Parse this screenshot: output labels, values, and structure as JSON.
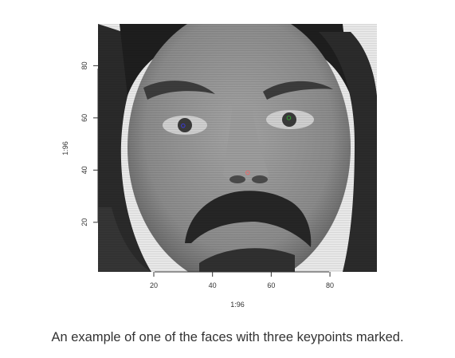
{
  "chart_data": {
    "type": "scatter",
    "title": "",
    "xlabel": "1:96",
    "ylabel": "1:96",
    "xlim": [
      1,
      96
    ],
    "ylim": [
      1,
      96
    ],
    "x_ticks": [
      20,
      40,
      60,
      80
    ],
    "y_ticks": [
      20,
      40,
      60,
      80
    ],
    "grid": false,
    "background": "grayscale face image",
    "series": [
      {
        "values": [
          {
            "x": 66,
            "y": 60
          }
        ],
        "color": "#2ca02c"
      },
      {
        "values": [
          {
            "x": 30,
            "y": 57
          }
        ],
        "color": "#3b3bd6"
      },
      {
        "values": [
          {
            "x": 52,
            "y": 39
          }
        ],
        "color": "#e86a6a"
      }
    ]
  },
  "caption": "An example of one of the faces with three keypoints marked."
}
